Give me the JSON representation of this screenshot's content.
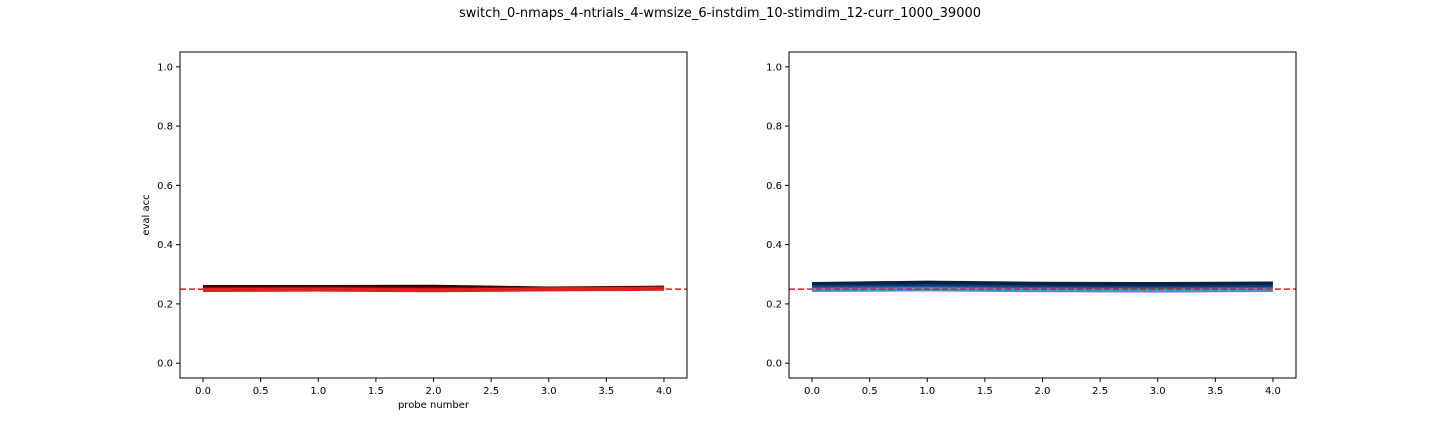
{
  "figure": {
    "title": "switch_0-nmaps_4-ntrials_4-wmsize_6-instdim_10-stimdim_12-curr_1000_39000"
  },
  "chart_data": [
    {
      "type": "line",
      "title": "",
      "xlabel": "probe number",
      "ylabel": "eval acc",
      "xlim": [
        -0.2,
        4.2
      ],
      "ylim": [
        -0.05,
        1.05
      ],
      "x_ticks": [
        0.0,
        0.5,
        1.0,
        1.5,
        2.0,
        2.5,
        3.0,
        3.5,
        4.0
      ],
      "x_tick_labels": [
        "0.0",
        "0.5",
        "1.0",
        "1.5",
        "2.0",
        "2.5",
        "3.0",
        "3.5",
        "4.0"
      ],
      "y_ticks": [
        0.0,
        0.2,
        0.4,
        0.6,
        0.8,
        1.0
      ],
      "y_tick_labels": [
        "0.0",
        "0.2",
        "0.4",
        "0.6",
        "0.8",
        "1.0"
      ],
      "x": [
        0,
        1,
        2,
        3,
        4
      ],
      "series": [
        {
          "color": "#1a0000",
          "values": [
            0.257,
            0.257,
            0.258,
            0.252,
            0.255
          ]
        },
        {
          "color": "#5a0000",
          "values": [
            0.253,
            0.254,
            0.252,
            0.251,
            0.254
          ]
        },
        {
          "color": "#a00000",
          "values": [
            0.25,
            0.251,
            0.249,
            0.25,
            0.252
          ]
        },
        {
          "color": "#e0201a",
          "values": [
            0.247,
            0.248,
            0.246,
            0.249,
            0.251
          ]
        }
      ],
      "reference_line": {
        "y": 0.25,
        "color": "#e41a1c",
        "style": "dashed"
      },
      "grid": false
    },
    {
      "type": "line",
      "title": "",
      "xlabel": "",
      "ylabel": "",
      "xlim": [
        -0.2,
        4.2
      ],
      "ylim": [
        -0.05,
        1.05
      ],
      "x_ticks": [
        0.0,
        0.5,
        1.0,
        1.5,
        2.0,
        2.5,
        3.0,
        3.5,
        4.0
      ],
      "x_tick_labels": [
        "0.0",
        "0.5",
        "1.0",
        "1.5",
        "2.0",
        "2.5",
        "3.0",
        "3.5",
        "4.0"
      ],
      "y_ticks": [
        0.0,
        0.2,
        0.4,
        0.6,
        0.8,
        1.0
      ],
      "y_tick_labels": [
        "0.0",
        "0.2",
        "0.4",
        "0.6",
        "0.8",
        "1.0"
      ],
      "x": [
        0,
        1,
        2,
        3,
        4
      ],
      "series": [
        {
          "color": "#0b1f3f",
          "values": [
            0.267,
            0.272,
            0.268,
            0.267,
            0.269
          ]
        },
        {
          "color": "#123a6e",
          "values": [
            0.257,
            0.26,
            0.256,
            0.255,
            0.258
          ]
        },
        {
          "color": "#1f5fa8",
          "values": [
            0.251,
            0.253,
            0.25,
            0.249,
            0.251
          ]
        },
        {
          "color": "#4a8fd6",
          "values": [
            0.247,
            0.249,
            0.246,
            0.245,
            0.247
          ]
        }
      ],
      "reference_line": {
        "y": 0.25,
        "color": "#e41a1c",
        "style": "dashed"
      },
      "grid": false
    }
  ]
}
